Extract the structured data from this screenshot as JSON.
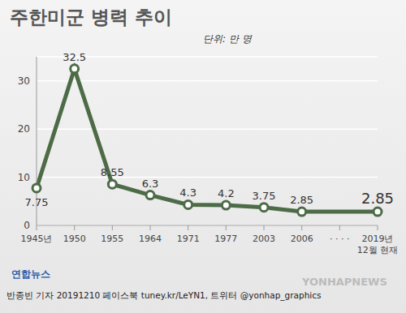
{
  "chart_data": {
    "type": "line",
    "title": "주한미군 병력 추이",
    "subtitle": "단위: 만 명",
    "categories": [
      "1945년",
      "1950",
      "1955",
      "1964",
      "1971",
      "1977",
      "2003",
      "2006",
      "· · · ·",
      "2019년\n12월 현재"
    ],
    "values": [
      7.75,
      32.5,
      8.55,
      6.3,
      4.3,
      4.2,
      3.75,
      2.85,
      null,
      2.85
    ],
    "color": "#4d6b47",
    "ylim": [
      0,
      35
    ],
    "yticks": [
      0,
      10,
      20,
      30
    ],
    "grid": true,
    "data_labels": true,
    "marker": "circle",
    "annotations": [
      "연합뉴스",
      "반종빈 기자 20191210  페이스북 tuney.kr/LeYN1, 트위터 @yonhap_graphics",
      "YONHAPNEWS"
    ]
  }
}
